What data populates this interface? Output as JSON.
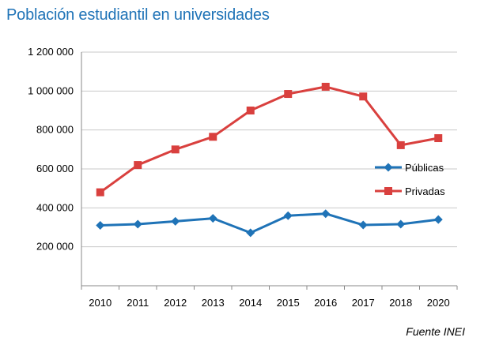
{
  "chart_data": {
    "type": "line",
    "title": "Población estudiantil en universidades",
    "source": "Fuente INEI",
    "categories": [
      "2010",
      "2011",
      "2012",
      "2013",
      "2014",
      "2015",
      "2016",
      "2017",
      "2018",
      "2020"
    ],
    "series": [
      {
        "name": "Públicas",
        "color": "#1f73b7",
        "marker": "diamond",
        "values": [
          310000,
          316000,
          331000,
          346000,
          272000,
          360000,
          370000,
          312000,
          316000,
          340000
        ]
      },
      {
        "name": "Privadas",
        "color": "#d9403e",
        "marker": "square",
        "values": [
          480000,
          620000,
          700000,
          765000,
          900000,
          985000,
          1022000,
          972000,
          722000,
          758000
        ]
      }
    ],
    "ylim": [
      0,
      1200000
    ],
    "yticks": [
      200000,
      400000,
      600000,
      800000,
      1000000,
      1200000
    ],
    "ytick_labels": [
      "200 000",
      "400 000",
      "600 000",
      "800 000",
      "1 000 000",
      "1 200 000"
    ],
    "grid": true,
    "legend_position": "right"
  }
}
